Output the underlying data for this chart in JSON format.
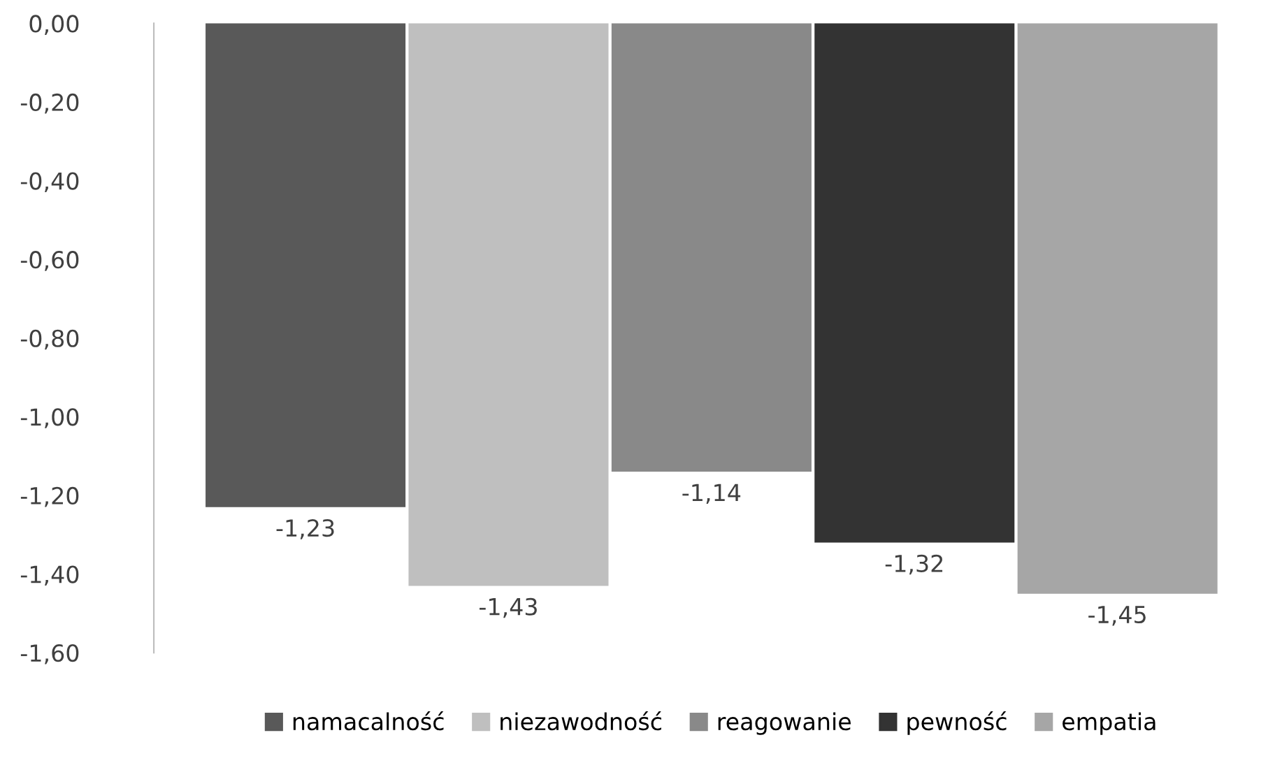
{
  "chart_data": {
    "type": "bar",
    "categories": [
      null
    ],
    "series": [
      {
        "name": "namacalność",
        "color": "#595959",
        "values": [
          -1.23
        ],
        "value_labels": [
          "-1,23"
        ]
      },
      {
        "name": "niezawodność",
        "color": "#bfbfbf",
        "values": [
          -1.43
        ],
        "value_labels": [
          "-1,43"
        ]
      },
      {
        "name": "reagowanie",
        "color": "#898989",
        "values": [
          -1.14
        ],
        "value_labels": [
          "-1,14"
        ]
      },
      {
        "name": "pewność",
        "color": "#333333",
        "values": [
          -1.32
        ],
        "value_labels": [
          "-1,32"
        ]
      },
      {
        "name": "empatia",
        "color": "#a6a6a6",
        "values": [
          -1.45
        ],
        "value_labels": [
          "-1,45"
        ]
      }
    ],
    "ylim": [
      -1.6,
      0
    ],
    "yticks": [
      {
        "value": 0,
        "label": "0,00"
      },
      {
        "value": -0.2,
        "label": "-0,20"
      },
      {
        "value": -0.4,
        "label": "-0,40"
      },
      {
        "value": -0.6,
        "label": "-0,60"
      },
      {
        "value": -0.8,
        "label": "-0,80"
      },
      {
        "value": -1.0,
        "label": "-1,00"
      },
      {
        "value": -1.2,
        "label": "-1,20"
      },
      {
        "value": -1.4,
        "label": "-1,40"
      },
      {
        "value": -1.6,
        "label": "-1,60"
      }
    ],
    "grid": false,
    "legend": "bottom"
  }
}
